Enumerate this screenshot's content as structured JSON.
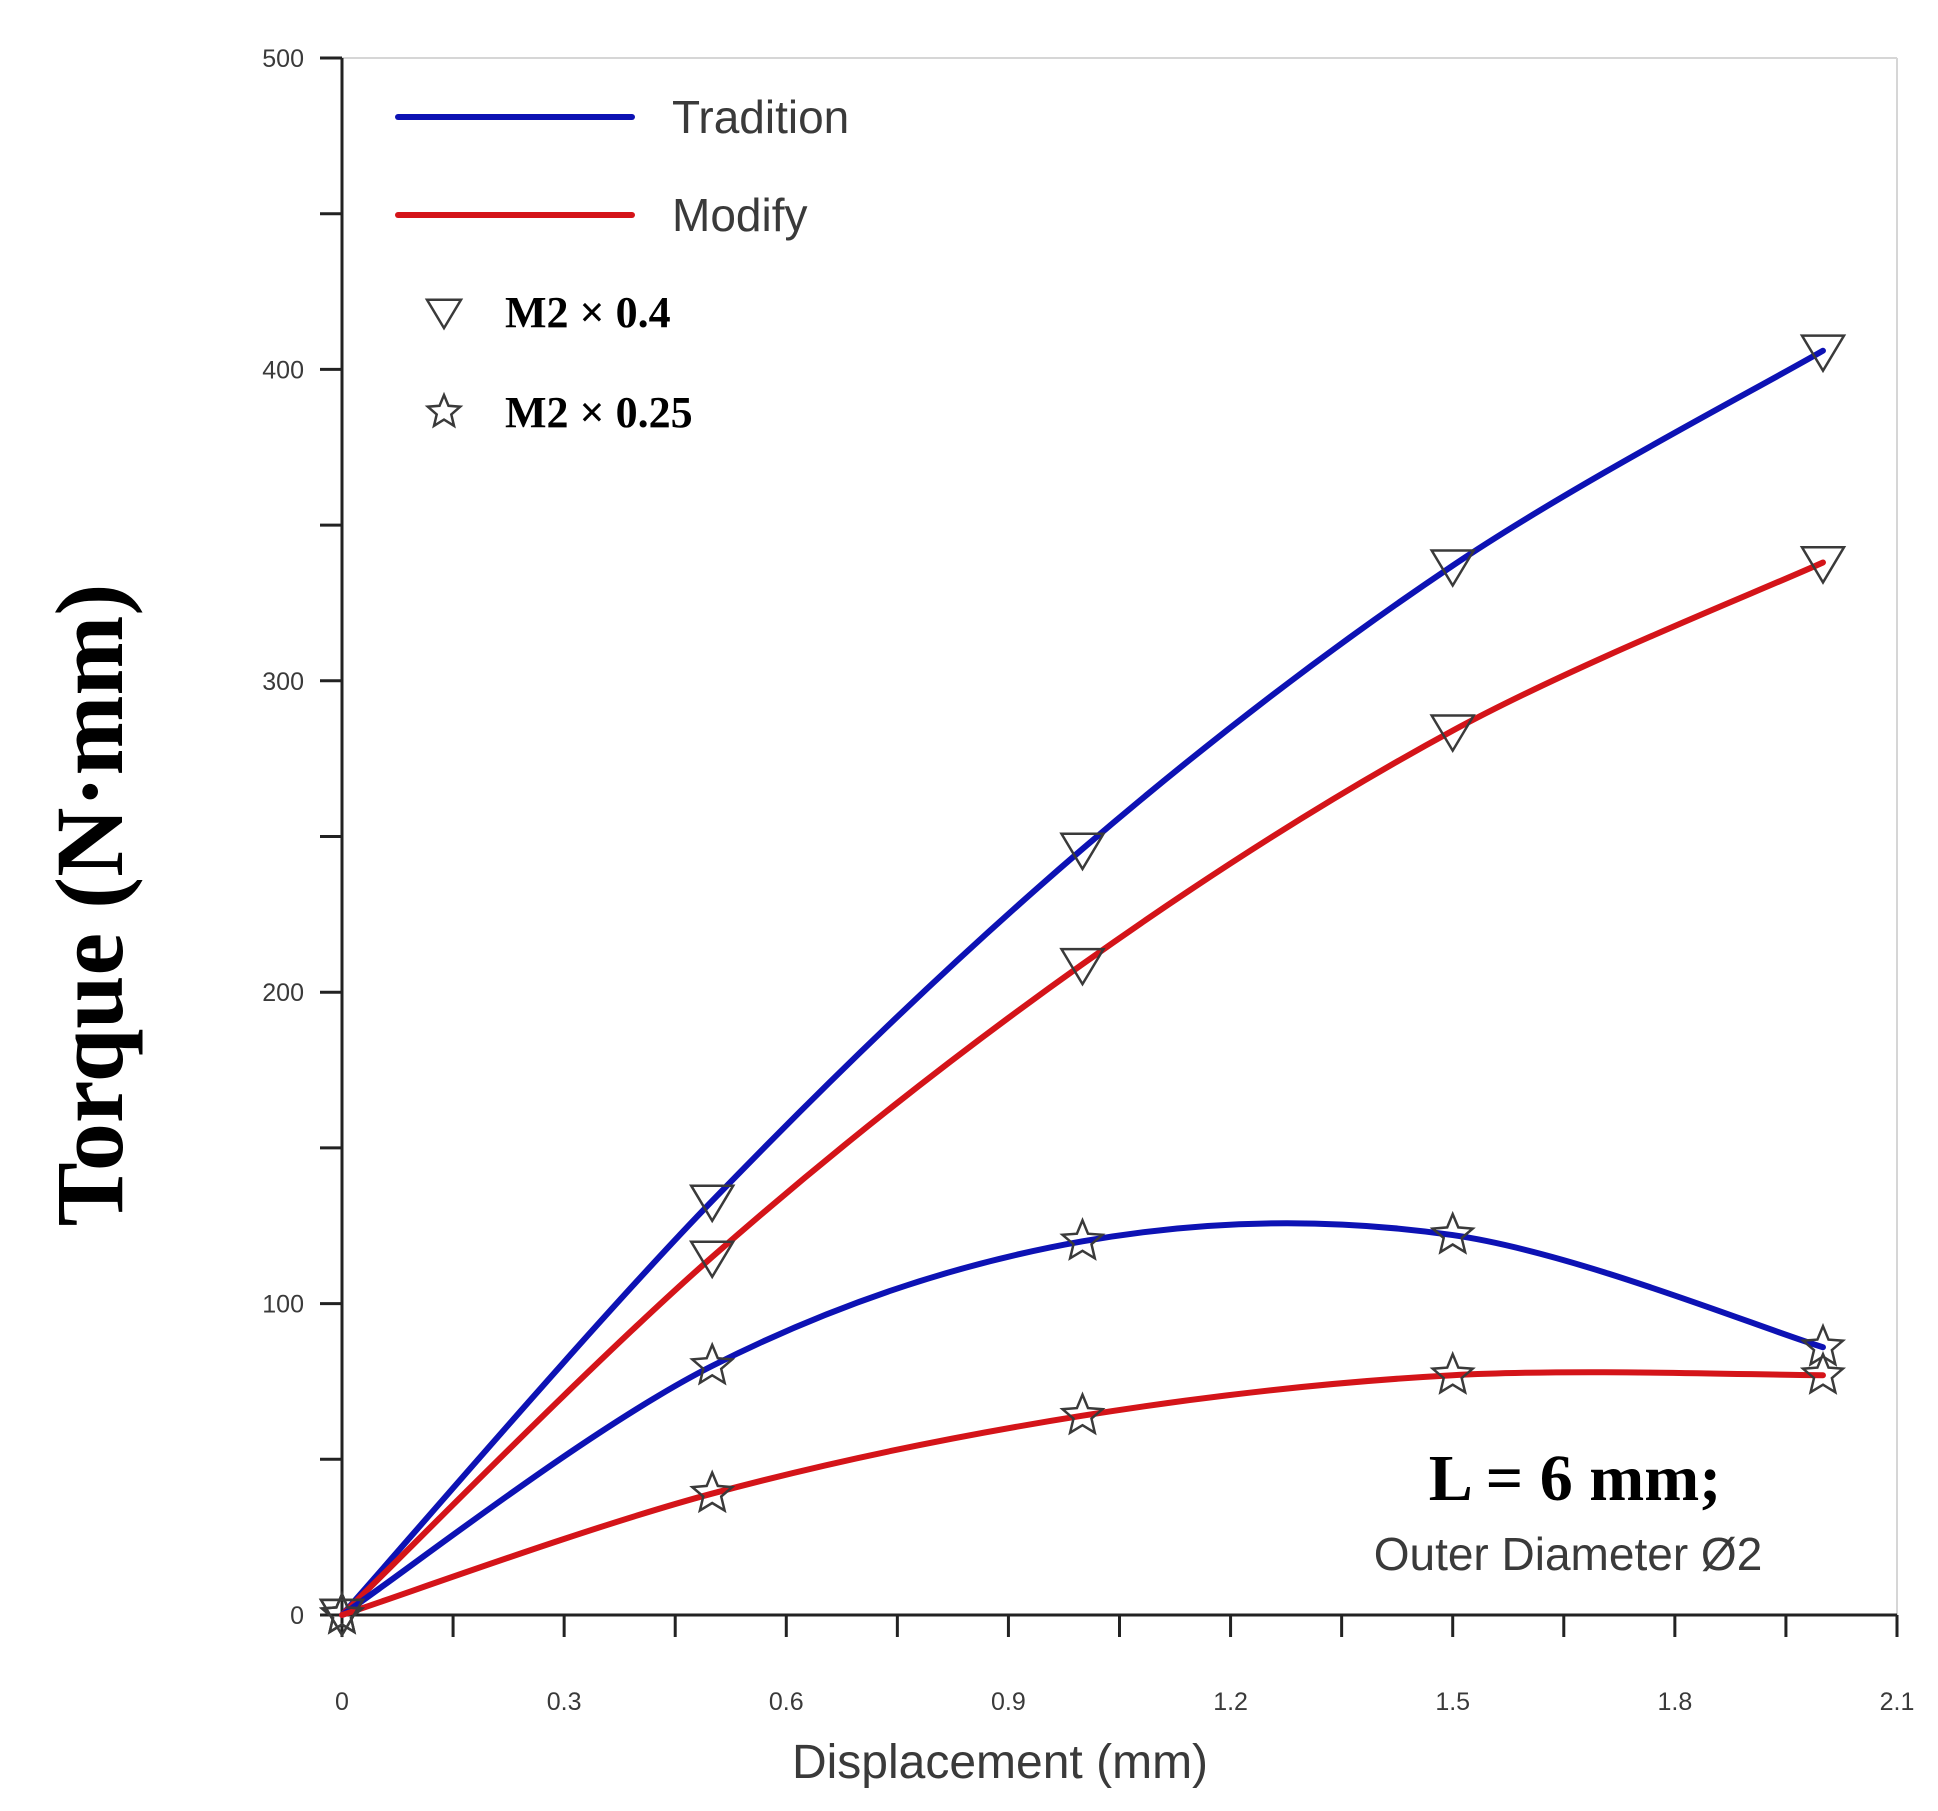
{
  "chart_data": {
    "type": "line",
    "title": "",
    "xlabel": "Displacement (mm)",
    "ylabel": "Torque (N·mm)",
    "xlim": [
      0,
      2.1
    ],
    "ylim": [
      0,
      500
    ],
    "xticks": [
      "0",
      "0.3",
      "0.6",
      "0.9",
      "1.2",
      "1.5",
      "1.8",
      "2.1"
    ],
    "yticks": [
      "0",
      "100",
      "200",
      "300",
      "400",
      "500"
    ],
    "x": [
      0,
      0.5,
      1.0,
      1.5,
      2.0
    ],
    "legend": {
      "lines": [
        {
          "label": "Tradition",
          "color": "#0d12b4"
        },
        {
          "label": "Modify",
          "color": "#d41419"
        }
      ],
      "markers": [
        {
          "symbol": "triangle-down",
          "label": "M2 × 0.4"
        },
        {
          "symbol": "star",
          "label": "M2 × 0.25"
        }
      ]
    },
    "series": [
      {
        "name": "Tradition M2 × 0.4",
        "method": "Tradition",
        "thread": "M2 × 0.4",
        "color": "#0d12b4",
        "marker": "triangle-down",
        "values": [
          0,
          133,
          246,
          337,
          406
        ]
      },
      {
        "name": "Modify M2 × 0.4",
        "method": "Modify",
        "thread": "M2 × 0.4",
        "color": "#d41419",
        "marker": "triangle-down",
        "values": [
          0,
          115,
          209,
          284,
          338
        ]
      },
      {
        "name": "Tradition M2 × 0.25",
        "method": "Tradition",
        "thread": "M2 × 0.25",
        "color": "#0d12b4",
        "marker": "star",
        "values": [
          0,
          80,
          120,
          122,
          86
        ]
      },
      {
        "name": "Modify M2 × 0.25",
        "method": "Modify",
        "thread": "M2 × 0.25",
        "color": "#d41419",
        "marker": "star",
        "values": [
          0,
          39,
          64,
          77,
          77
        ]
      }
    ],
    "annotations": [
      "L = 6 mm;",
      "Outer Diameter Ø2"
    ]
  }
}
